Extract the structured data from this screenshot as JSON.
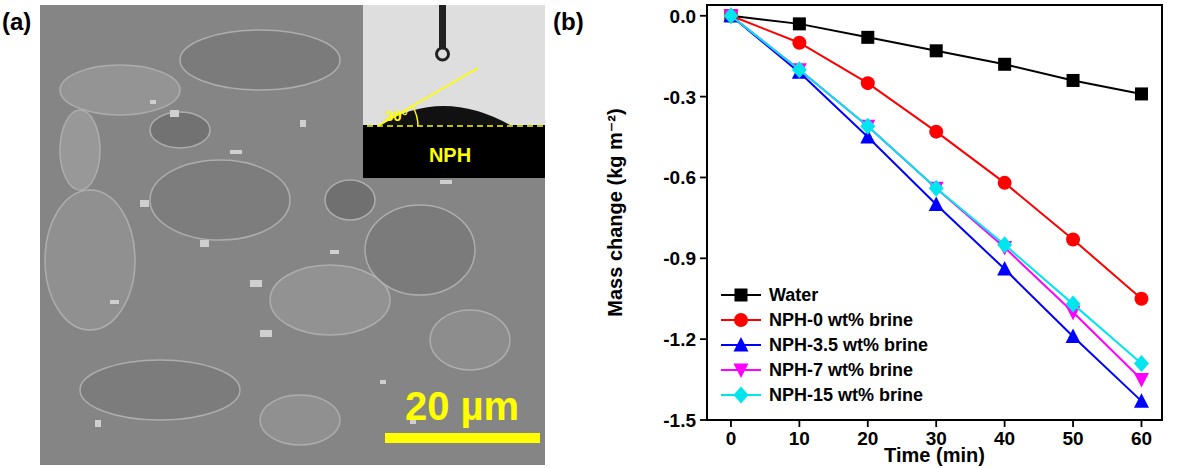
{
  "image": {
    "panel_label": "(a)",
    "scale_bar_label": "20 µm",
    "inset_angle_label": "30°",
    "inset_sample_label": "NPH"
  },
  "chart_data": {
    "type": "line",
    "panel_label": "(b)",
    "x_label": "Time (min)",
    "y_label": "Mass change (kg m⁻²)",
    "x": [
      0,
      10,
      20,
      30,
      40,
      50,
      60
    ],
    "series": [
      {
        "name": "Water",
        "color": "#000000",
        "marker": "square",
        "values": [
          0,
          -0.03,
          -0.08,
          -0.13,
          -0.18,
          -0.24,
          -0.29
        ]
      },
      {
        "name": "NPH-0 wt% brine",
        "color": "#ff0000",
        "marker": "circle",
        "values": [
          0,
          -0.1,
          -0.25,
          -0.43,
          -0.62,
          -0.83,
          -1.05
        ]
      },
      {
        "name": "NPH-3.5 wt% brine",
        "color": "#0000ff",
        "marker": "triangle-up",
        "values": [
          0,
          -0.21,
          -0.45,
          -0.7,
          -0.94,
          -1.19,
          -1.43
        ]
      },
      {
        "name": "NPH-7 wt% brine",
        "color": "#ff00ff",
        "marker": "triangle-down",
        "values": [
          0,
          -0.2,
          -0.41,
          -0.64,
          -0.86,
          -1.1,
          -1.35
        ]
      },
      {
        "name": "NPH-15 wt% brine",
        "color": "#00e5ee",
        "marker": "diamond",
        "values": [
          0,
          -0.2,
          -0.41,
          -0.64,
          -0.85,
          -1.07,
          -1.29
        ]
      }
    ],
    "xlim": [
      -3.5,
      63
    ],
    "ylim": [
      -1.5,
      0.04
    ],
    "xticks": [
      0,
      10,
      20,
      30,
      40,
      50,
      60
    ],
    "yticks": [
      {
        "value": 0,
        "label": "0.0"
      },
      -0.3,
      -0.6,
      -0.9,
      -1.2,
      -1.5
    ],
    "legend": "lower left",
    "grid": false
  }
}
